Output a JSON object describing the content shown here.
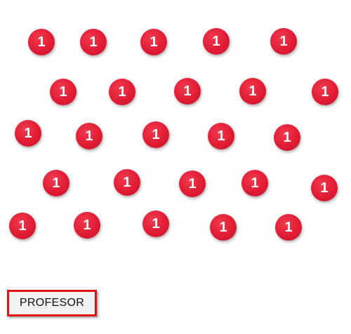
{
  "badges": {
    "label": "1",
    "color": "#e01c34",
    "count": 25
  },
  "teacher_button": {
    "label": "PROFESOR",
    "border_color": "#e01414"
  }
}
